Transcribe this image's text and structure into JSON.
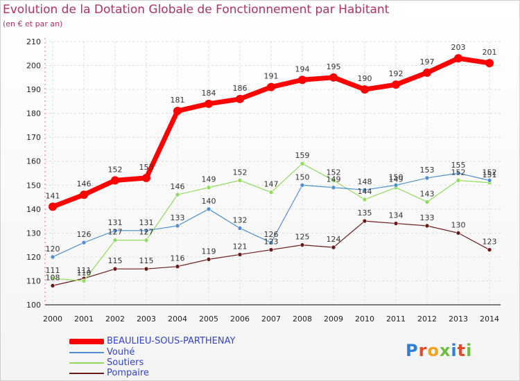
{
  "chart_data": {
    "type": "line",
    "title": "Evolution de la Dotation Globale de Fonctionnement par Habitant",
    "subtitle": "(en € et par an)",
    "x": [
      "2000",
      "2001",
      "2002",
      "2003",
      "2004",
      "2005",
      "2006",
      "2007",
      "2008",
      "2009",
      "2010",
      "2011",
      "2012",
      "2013",
      "2014"
    ],
    "ylim": [
      100,
      210
    ],
    "yticks": [
      "100",
      "110",
      "120",
      "130",
      "140",
      "150",
      "160",
      "170",
      "180",
      "190",
      "200",
      "210"
    ],
    "series": [
      {
        "name": "BEAULIEU-SOUS-PARTHENAY",
        "color": "#ff0000",
        "values": [
          141,
          146,
          152,
          153,
          181,
          184,
          186,
          191,
          194,
          195,
          190,
          192,
          197,
          203,
          201
        ]
      },
      {
        "name": "Vouhé",
        "color": "#4f8fd0",
        "values": [
          120,
          126,
          131,
          131,
          133,
          140,
          132,
          126,
          150,
          149,
          148,
          150,
          153,
          155,
          152
        ]
      },
      {
        "name": "Soutiers",
        "color": "#8fdc5a",
        "values": [
          111,
          110,
          127,
          127,
          146,
          149,
          152,
          147,
          159,
          152,
          144,
          149,
          143,
          152,
          151
        ]
      },
      {
        "name": "Pompaire",
        "color": "#6b1a1a",
        "values": [
          108,
          111,
          115,
          115,
          116,
          119,
          121,
          123,
          125,
          124,
          135,
          134,
          133,
          130,
          123
        ]
      }
    ]
  },
  "brand": "Proxiti"
}
